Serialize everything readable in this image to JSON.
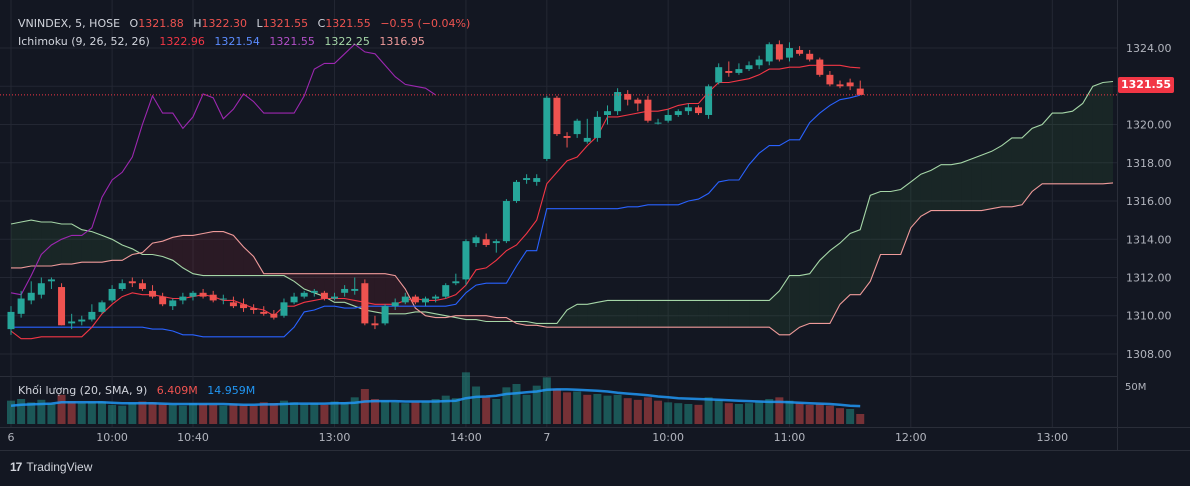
{
  "header": {
    "symbol": "VNINDEX, 5, HOSE",
    "open_label": "O",
    "open": "1321.88",
    "high_label": "H",
    "high": "1322.30",
    "low_label": "L",
    "low": "1321.55",
    "close_label": "C",
    "close": "1321.55",
    "change": "−0.55 (−0.04%)"
  },
  "ichimoku": {
    "label": "Ichimoku (9, 26, 52, 26)",
    "values": [
      "1322.96",
      "1321.54",
      "1321.55",
      "1322.25",
      "1316.95"
    ],
    "colors": [
      "#f23645",
      "#2962ff",
      "#9c27b0",
      "#a5d6a7",
      "#ef9a9a"
    ]
  },
  "volume": {
    "label": "Khối lượng (20, SMA, 9)",
    "value": "6.409M",
    "sma": "14.959M",
    "scale_label": "50M"
  },
  "current_price": "1321.55",
  "brand": "TradingView",
  "colors": {
    "up": "#26a69a",
    "down": "#ef5350",
    "bg": "#131722",
    "grid": "#2a2e39"
  },
  "chart_data": {
    "type": "candlestick",
    "y_ticks": [
      "1308.00",
      "1310.00",
      "1312.00",
      "1314.00",
      "1316.00",
      "1318.00",
      "1320.00",
      "1322.00",
      "1324.00"
    ],
    "ylim": [
      1306.9,
      1326.2
    ],
    "x_ticks": [
      {
        "bar": 0,
        "label": "6"
      },
      {
        "bar": 10,
        "label": "10:00"
      },
      {
        "bar": 18,
        "label": "10:40"
      },
      {
        "bar": 32,
        "label": "13:00"
      },
      {
        "bar": 45,
        "label": "14:00"
      },
      {
        "bar": 53,
        "label": "7"
      },
      {
        "bar": 65,
        "label": "10:00"
      },
      {
        "bar": 77,
        "label": "11:00"
      },
      {
        "bar": 89,
        "label": "12:00"
      },
      {
        "bar": 103,
        "label": "13:00"
      }
    ],
    "candles": [
      [
        1309.3,
        1310.5,
        1309.0,
        1310.2
      ],
      [
        1310.1,
        1311.3,
        1309.9,
        1310.9
      ],
      [
        1310.8,
        1311.8,
        1310.6,
        1311.2
      ],
      [
        1311.1,
        1312.0,
        1310.9,
        1311.7
      ],
      [
        1311.8,
        1312.0,
        1311.4,
        1311.9
      ],
      [
        1311.5,
        1311.7,
        1309.5,
        1309.5
      ],
      [
        1309.6,
        1310.1,
        1309.3,
        1309.7
      ],
      [
        1309.7,
        1310.0,
        1309.5,
        1309.8
      ],
      [
        1309.8,
        1310.6,
        1309.7,
        1310.2
      ],
      [
        1310.2,
        1310.8,
        1310.1,
        1310.7
      ],
      [
        1310.8,
        1311.6,
        1310.7,
        1311.4
      ],
      [
        1311.4,
        1311.9,
        1311.3,
        1311.7
      ],
      [
        1311.8,
        1312.0,
        1311.5,
        1311.7
      ],
      [
        1311.7,
        1311.9,
        1311.3,
        1311.4
      ],
      [
        1311.3,
        1311.6,
        1310.9,
        1311.0
      ],
      [
        1311.0,
        1311.2,
        1310.5,
        1310.6
      ],
      [
        1310.5,
        1310.9,
        1310.3,
        1310.8
      ],
      [
        1310.8,
        1311.2,
        1310.6,
        1311.0
      ],
      [
        1311.0,
        1311.3,
        1310.8,
        1311.2
      ],
      [
        1311.2,
        1311.4,
        1310.9,
        1311.0
      ],
      [
        1311.1,
        1311.3,
        1310.7,
        1310.8
      ],
      [
        1310.9,
        1311.1,
        1310.6,
        1310.9
      ],
      [
        1310.7,
        1311.0,
        1310.4,
        1310.5
      ],
      [
        1310.6,
        1310.9,
        1310.2,
        1310.4
      ],
      [
        1310.4,
        1310.6,
        1310.1,
        1310.3
      ],
      [
        1310.2,
        1310.5,
        1310.0,
        1310.1
      ],
      [
        1310.1,
        1310.3,
        1309.8,
        1309.9
      ],
      [
        1310.0,
        1310.9,
        1309.9,
        1310.7
      ],
      [
        1310.7,
        1311.2,
        1310.6,
        1311.0
      ],
      [
        1311.0,
        1311.3,
        1310.9,
        1311.2
      ],
      [
        1311.2,
        1311.4,
        1311.0,
        1311.3
      ],
      [
        1311.2,
        1311.3,
        1310.8,
        1310.9
      ],
      [
        1310.9,
        1311.2,
        1310.8,
        1311.0
      ],
      [
        1311.2,
        1311.6,
        1311.0,
        1311.4
      ],
      [
        1311.3,
        1312.0,
        1311.1,
        1311.4
      ],
      [
        1311.7,
        1311.9,
        1309.5,
        1309.6
      ],
      [
        1309.6,
        1310.0,
        1309.3,
        1309.5
      ],
      [
        1309.6,
        1310.6,
        1309.5,
        1310.5
      ],
      [
        1310.5,
        1310.9,
        1310.3,
        1310.7
      ],
      [
        1310.7,
        1311.2,
        1310.6,
        1311.0
      ],
      [
        1311.0,
        1311.1,
        1310.6,
        1310.7
      ],
      [
        1310.7,
        1311.0,
        1310.5,
        1310.9
      ],
      [
        1310.9,
        1311.1,
        1310.7,
        1311.0
      ],
      [
        1311.0,
        1311.7,
        1310.9,
        1311.6
      ],
      [
        1311.7,
        1312.2,
        1311.6,
        1311.8
      ],
      [
        1311.9,
        1314.0,
        1311.6,
        1313.9
      ],
      [
        1313.8,
        1314.2,
        1313.6,
        1314.1
      ],
      [
        1314.0,
        1314.3,
        1313.6,
        1313.7
      ],
      [
        1313.8,
        1314.0,
        1313.3,
        1313.9
      ],
      [
        1313.9,
        1316.1,
        1313.8,
        1316.0
      ],
      [
        1316.0,
        1317.1,
        1315.9,
        1317.0
      ],
      [
        1317.1,
        1317.4,
        1316.9,
        1317.2
      ],
      [
        1317.0,
        1317.4,
        1316.8,
        1317.2
      ],
      [
        1318.2,
        1321.5,
        1318.1,
        1321.4
      ],
      [
        1321.4,
        1321.5,
        1319.4,
        1319.5
      ],
      [
        1319.4,
        1319.6,
        1318.8,
        1319.3
      ],
      [
        1319.5,
        1320.3,
        1319.3,
        1320.2
      ],
      [
        1319.1,
        1320.3,
        1319.0,
        1319.3
      ],
      [
        1319.3,
        1320.7,
        1319.1,
        1320.4
      ],
      [
        1320.5,
        1321.0,
        1320.0,
        1320.7
      ],
      [
        1320.7,
        1321.9,
        1320.5,
        1321.7
      ],
      [
        1321.6,
        1321.8,
        1321.0,
        1321.3
      ],
      [
        1321.3,
        1321.4,
        1320.7,
        1321.1
      ],
      [
        1321.3,
        1321.5,
        1320.1,
        1320.2
      ],
      [
        1320.1,
        1320.3,
        1320.0,
        1320.1
      ],
      [
        1320.2,
        1320.8,
        1320.1,
        1320.5
      ],
      [
        1320.5,
        1320.8,
        1320.4,
        1320.7
      ],
      [
        1320.7,
        1321.1,
        1320.5,
        1320.9
      ],
      [
        1320.9,
        1321.0,
        1320.5,
        1320.6
      ],
      [
        1320.5,
        1322.1,
        1320.3,
        1322.0
      ],
      [
        1322.2,
        1323.2,
        1322.1,
        1323.0
      ],
      [
        1322.8,
        1323.3,
        1322.5,
        1322.7
      ],
      [
        1322.7,
        1323.2,
        1322.6,
        1322.9
      ],
      [
        1322.9,
        1323.3,
        1322.8,
        1323.1
      ],
      [
        1323.1,
        1323.6,
        1322.9,
        1323.4
      ],
      [
        1323.3,
        1324.3,
        1323.1,
        1324.2
      ],
      [
        1324.2,
        1324.4,
        1323.3,
        1323.4
      ],
      [
        1323.5,
        1324.3,
        1323.3,
        1324.0
      ],
      [
        1323.9,
        1324.1,
        1323.6,
        1323.7
      ],
      [
        1323.7,
        1323.9,
        1323.3,
        1323.4
      ],
      [
        1323.4,
        1323.5,
        1322.5,
        1322.6
      ],
      [
        1322.6,
        1322.8,
        1322.0,
        1322.1
      ],
      [
        1322.1,
        1322.3,
        1321.9,
        1322.0
      ],
      [
        1322.2,
        1322.4,
        1321.8,
        1322.0
      ],
      [
        1321.88,
        1322.3,
        1321.55,
        1321.55
      ]
    ],
    "tenkan_sen": [
      1309.2,
      1308.8,
      1308.8,
      1308.9,
      1308.9,
      1308.9,
      1308.9,
      1308.9,
      1309.4,
      1310.1,
      1310.6,
      1311.0,
      1311.2,
      1311.1,
      1311.1,
      1311.0,
      1310.9,
      1310.9,
      1311.0,
      1311.1,
      1311.0,
      1310.8,
      1310.8,
      1310.6,
      1310.4,
      1310.3,
      1310.0,
      1310.5,
      1310.5,
      1310.7,
      1310.8,
      1310.9,
      1310.9,
      1310.9,
      1310.8,
      1310.7,
      1310.6,
      1310.6,
      1310.6,
      1310.8,
      1310.9,
      1310.8,
      1310.8,
      1310.9,
      1311.1,
      1311.6,
      1312.4,
      1312.5,
      1312.9,
      1313.4,
      1313.7,
      1314.3,
      1315.0,
      1316.9,
      1317.5,
      1318.1,
      1318.3,
      1318.9,
      1319.4,
      1320.4,
      1320.4,
      1320.5,
      1320.6,
      1320.7,
      1320.7,
      1320.8,
      1321.0,
      1321.1,
      1321.1,
      1321.7,
      1322.2,
      1322.2,
      1322.3,
      1322.4,
      1322.6,
      1322.9,
      1322.9,
      1323.0,
      1323.0,
      1323.1,
      1323.1,
      1323.1,
      1323.1,
      1323.0,
      1322.96
    ],
    "kijun_sen": [
      1309.4,
      1309.4,
      1309.4,
      1309.4,
      1309.4,
      1309.4,
      1309.4,
      1309.4,
      1309.4,
      1309.4,
      1309.4,
      1309.4,
      1309.4,
      1309.4,
      1309.3,
      1309.3,
      1309.2,
      1309.0,
      1309.0,
      1308.9,
      1308.9,
      1308.9,
      1308.9,
      1308.9,
      1308.9,
      1308.9,
      1308.9,
      1308.9,
      1309.4,
      1310.2,
      1310.3,
      1310.5,
      1310.5,
      1310.4,
      1310.4,
      1310.5,
      1310.5,
      1310.5,
      1310.5,
      1310.5,
      1310.5,
      1310.5,
      1310.5,
      1310.5,
      1310.6,
      1311.2,
      1311.6,
      1311.7,
      1311.7,
      1311.7,
      1312.6,
      1313.4,
      1313.4,
      1315.6,
      1315.6,
      1315.6,
      1315.6,
      1315.6,
      1315.6,
      1315.6,
      1315.6,
      1315.7,
      1315.7,
      1315.8,
      1315.8,
      1315.8,
      1315.8,
      1316.0,
      1316.1,
      1316.4,
      1317.0,
      1317.1,
      1317.1,
      1317.9,
      1318.5,
      1318.9,
      1318.9,
      1319.2,
      1319.2,
      1320.1,
      1320.6,
      1321.0,
      1321.3,
      1321.4,
      1321.54
    ],
    "chikou_span": [
      1311.2,
      1311.1,
      1312.1,
      1313.2,
      1313.7,
      1314.0,
      1314.2,
      1314.2,
      1314.6,
      1316.2,
      1317.1,
      1317.5,
      1318.3,
      1320.0,
      1321.5,
      1320.6,
      1320.6,
      1319.8,
      1320.4,
      1321.6,
      1321.4,
      1320.3,
      1320.8,
      1321.6,
      1321.2,
      1320.6,
      1320.6,
      1320.6,
      1320.6,
      1321.5,
      1322.9,
      1323.2,
      1323.2,
      1323.7,
      1324.2,
      1323.8,
      1323.7,
      1323.1,
      1322.5,
      1322.1,
      1322.0,
      1321.9,
      1321.55
    ],
    "senkou_span_a": [
      1314.8,
      1314.9,
      1315.0,
      1314.9,
      1314.9,
      1314.8,
      1314.8,
      1314.5,
      1314.4,
      1314.2,
      1314.0,
      1313.7,
      1313.5,
      1313.2,
      1313.2,
      1313.1,
      1312.9,
      1312.5,
      1312.2,
      1312.1,
      1312.1,
      1312.1,
      1312.1,
      1312.1,
      1312.1,
      1312.1,
      1312.1,
      1312.1,
      1311.8,
      1311.4,
      1311.2,
      1311.0,
      1310.7,
      1310.7,
      1310.5,
      1310.3,
      1310.2,
      1310.1,
      1310.1,
      1310.1,
      1310.2,
      1310.2,
      1310.1,
      1310.0,
      1309.9,
      1309.8,
      1309.8,
      1309.7,
      1309.7,
      1309.7,
      1309.7,
      1309.7,
      1309.6,
      1309.6,
      1309.6,
      1310.3,
      1310.6,
      1310.6,
      1310.7,
      1310.8,
      1310.8,
      1310.8,
      1310.8,
      1310.8,
      1310.8,
      1310.8,
      1310.8,
      1310.8,
      1310.8,
      1310.8,
      1310.8,
      1310.8,
      1310.8,
      1310.8,
      1310.8,
      1310.8,
      1311.3,
      1312.1,
      1312.1,
      1312.2,
      1312.9,
      1313.4,
      1313.8,
      1314.3,
      1314.5,
      1316.3,
      1316.5,
      1316.5,
      1316.6,
      1317.0,
      1317.4,
      1317.6,
      1317.9,
      1317.9,
      1318.0,
      1318.2,
      1318.4,
      1318.6,
      1318.9,
      1319.3,
      1319.3,
      1319.8,
      1320.0,
      1320.6,
      1320.6,
      1320.7,
      1321.1,
      1322.0,
      1322.2,
      1322.25
    ],
    "senkou_span_b": [
      1312.5,
      1312.5,
      1312.6,
      1312.6,
      1312.6,
      1312.7,
      1312.7,
      1312.8,
      1312.8,
      1312.8,
      1312.9,
      1312.9,
      1313.2,
      1313.3,
      1313.8,
      1313.9,
      1314.1,
      1314.2,
      1314.2,
      1314.3,
      1314.4,
      1314.4,
      1314.2,
      1313.6,
      1313.1,
      1312.2,
      1312.2,
      1312.2,
      1312.2,
      1312.2,
      1312.2,
      1312.2,
      1312.2,
      1312.2,
      1312.2,
      1312.2,
      1312.2,
      1312.2,
      1312.1,
      1311.4,
      1310.4,
      1310.0,
      1309.9,
      1309.9,
      1310.0,
      1310.0,
      1310.0,
      1310.0,
      1309.9,
      1309.9,
      1309.6,
      1309.5,
      1309.5,
      1309.4,
      1309.4,
      1309.4,
      1309.4,
      1309.4,
      1309.4,
      1309.4,
      1309.4,
      1309.4,
      1309.4,
      1309.4,
      1309.4,
      1309.4,
      1309.4,
      1309.4,
      1309.4,
      1309.4,
      1309.4,
      1309.4,
      1309.4,
      1309.4,
      1309.4,
      1309.4,
      1309.0,
      1309.0,
      1309.4,
      1309.6,
      1309.6,
      1309.6,
      1310.6,
      1311.1,
      1311.1,
      1311.8,
      1313.2,
      1313.2,
      1313.2,
      1314.6,
      1315.2,
      1315.5,
      1315.5,
      1315.5,
      1315.5,
      1315.5,
      1315.5,
      1315.6,
      1315.7,
      1315.7,
      1315.8,
      1316.5,
      1316.9,
      1316.9,
      1316.9,
      1316.9,
      1316.9,
      1316.9,
      1316.9,
      1316.95
    ],
    "volume": [
      [
        2.8,
        0
      ],
      [
        3.0,
        0
      ],
      [
        2.6,
        0
      ],
      [
        2.9,
        0
      ],
      [
        2.4,
        0
      ],
      [
        3.5,
        1
      ],
      [
        2.7,
        1
      ],
      [
        2.5,
        0
      ],
      [
        2.6,
        0
      ],
      [
        2.7,
        0
      ],
      [
        2.3,
        0
      ],
      [
        2.2,
        0
      ],
      [
        2.5,
        0
      ],
      [
        2.7,
        1
      ],
      [
        2.6,
        1
      ],
      [
        2.4,
        1
      ],
      [
        2.3,
        0
      ],
      [
        2.2,
        0
      ],
      [
        2.5,
        0
      ],
      [
        2.4,
        1
      ],
      [
        2.3,
        1
      ],
      [
        2.2,
        0
      ],
      [
        2.4,
        1
      ],
      [
        2.3,
        1
      ],
      [
        2.2,
        1
      ],
      [
        2.6,
        1
      ],
      [
        2.5,
        1
      ],
      [
        2.8,
        0
      ],
      [
        2.6,
        0
      ],
      [
        2.4,
        0
      ],
      [
        2.5,
        0
      ],
      [
        2.3,
        1
      ],
      [
        2.7,
        0
      ],
      [
        2.6,
        0
      ],
      [
        3.2,
        0
      ],
      [
        4.2,
        1
      ],
      [
        3.0,
        1
      ],
      [
        2.8,
        0
      ],
      [
        2.6,
        0
      ],
      [
        2.5,
        0
      ],
      [
        2.6,
        1
      ],
      [
        2.7,
        0
      ],
      [
        3.0,
        0
      ],
      [
        3.4,
        0
      ],
      [
        3.1,
        0
      ],
      [
        6.2,
        0
      ],
      [
        4.5,
        0
      ],
      [
        3.2,
        1
      ],
      [
        3.0,
        0
      ],
      [
        4.4,
        0
      ],
      [
        4.8,
        0
      ],
      [
        3.5,
        0
      ],
      [
        4.6,
        0
      ],
      [
        5.6,
        0
      ],
      [
        4.2,
        1
      ],
      [
        3.8,
        1
      ],
      [
        3.9,
        0
      ],
      [
        3.5,
        1
      ],
      [
        3.6,
        0
      ],
      [
        3.4,
        0
      ],
      [
        3.5,
        0
      ],
      [
        3.1,
        1
      ],
      [
        2.9,
        1
      ],
      [
        3.2,
        1
      ],
      [
        2.8,
        1
      ],
      [
        2.6,
        0
      ],
      [
        2.5,
        0
      ],
      [
        2.4,
        0
      ],
      [
        2.3,
        1
      ],
      [
        3.2,
        0
      ],
      [
        2.9,
        0
      ],
      [
        2.5,
        1
      ],
      [
        2.4,
        0
      ],
      [
        2.5,
        0
      ],
      [
        2.7,
        0
      ],
      [
        3.0,
        0
      ],
      [
        3.2,
        1
      ],
      [
        2.8,
        0
      ],
      [
        2.5,
        1
      ],
      [
        2.3,
        1
      ],
      [
        2.4,
        1
      ],
      [
        2.2,
        1
      ],
      [
        1.9,
        1
      ],
      [
        1.8,
        0
      ],
      [
        1.2,
        1
      ]
    ],
    "volume_sma": [
      2.2,
      2.3,
      2.35,
      2.4,
      2.45,
      2.6,
      2.6,
      2.6,
      2.6,
      2.6,
      2.55,
      2.5,
      2.5,
      2.5,
      2.5,
      2.45,
      2.4,
      2.4,
      2.4,
      2.4,
      2.4,
      2.4,
      2.35,
      2.3,
      2.3,
      2.35,
      2.35,
      2.4,
      2.45,
      2.45,
      2.45,
      2.45,
      2.5,
      2.5,
      2.55,
      2.7,
      2.75,
      2.75,
      2.75,
      2.7,
      2.7,
      2.7,
      2.7,
      2.75,
      2.8,
      3.1,
      3.25,
      3.3,
      3.4,
      3.6,
      3.7,
      3.8,
      3.9,
      4.1,
      4.15,
      4.15,
      4.1,
      4.05,
      4.0,
      3.9,
      3.75,
      3.65,
      3.55,
      3.45,
      3.3,
      3.2,
      3.1,
      3.05,
      3.0,
      2.95,
      2.9,
      2.85,
      2.8,
      2.75,
      2.7,
      2.65,
      2.65,
      2.6,
      2.55,
      2.5,
      2.45,
      2.4,
      2.3,
      2.2,
      2.15
    ]
  }
}
